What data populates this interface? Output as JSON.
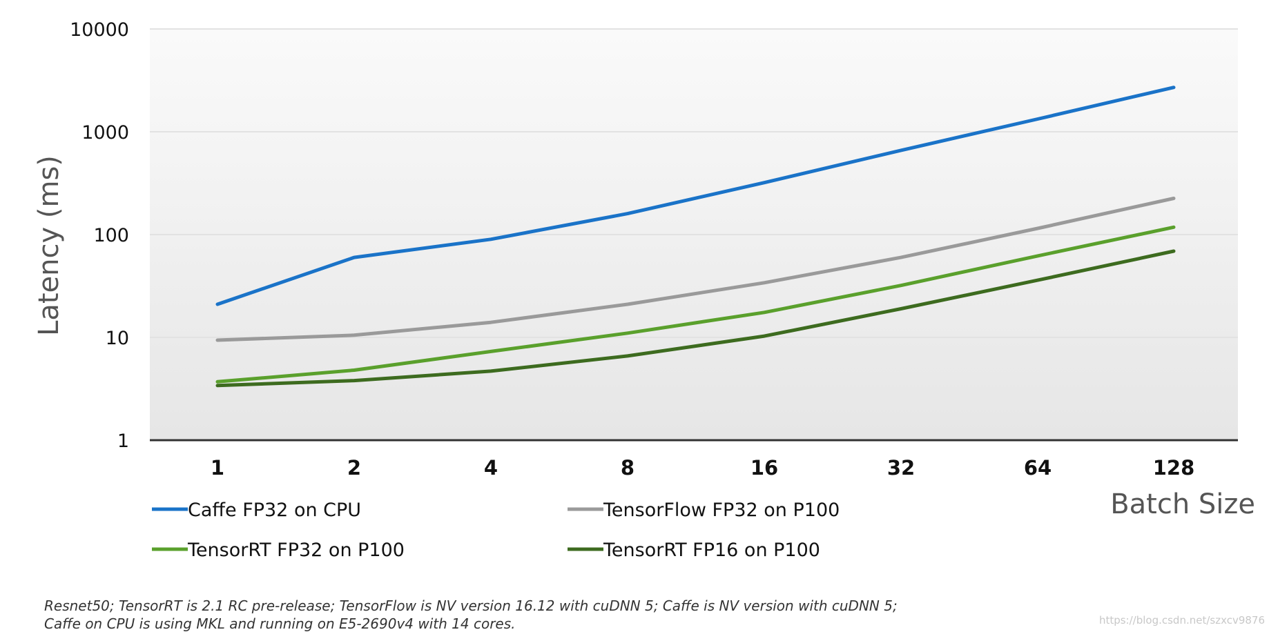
{
  "chart_data": {
    "type": "line",
    "title": "",
    "ylabel": "Latency (ms)",
    "xlabel": "Batch Size",
    "yscale": "log",
    "ylim": [
      1,
      10000
    ],
    "yticks": [
      "1",
      "10",
      "100",
      "1000",
      "10000"
    ],
    "categories": [
      "1",
      "2",
      "4",
      "8",
      "16",
      "32",
      "64",
      "128"
    ],
    "series": [
      {
        "name": "Caffe FP32 on CPU",
        "color": "#1a73c8",
        "values": [
          21,
          60,
          90,
          160,
          320,
          660,
          1330,
          2700
        ]
      },
      {
        "name": "TensorFlow FP32 on P100",
        "color": "#9a9a9a",
        "values": [
          9.4,
          10.5,
          14,
          21,
          34,
          60,
          115,
          225
        ]
      },
      {
        "name": "TensorRT FP32 on P100",
        "color": "#5aa02c",
        "values": [
          3.7,
          4.8,
          7.3,
          11,
          17.5,
          32,
          62,
          118
        ]
      },
      {
        "name": "TensorRT FP16 on P100",
        "color": "#3d6b1f",
        "values": [
          3.4,
          3.8,
          4.7,
          6.6,
          10.3,
          19,
          36,
          69
        ]
      }
    ],
    "legend_position": "bottom",
    "grid": true
  },
  "footnote": {
    "line1": "Resnet50; TensorRT is  2.1 RC pre-release; TensorFlow is NV version 16.12 with cuDNN 5; Caffe is NV version with cuDNN 5;",
    "line2": "Caffe on CPU is using MKL and running on E5-2690v4 with 14 cores."
  },
  "watermark": "https://blog.csdn.net/szxcv9876"
}
